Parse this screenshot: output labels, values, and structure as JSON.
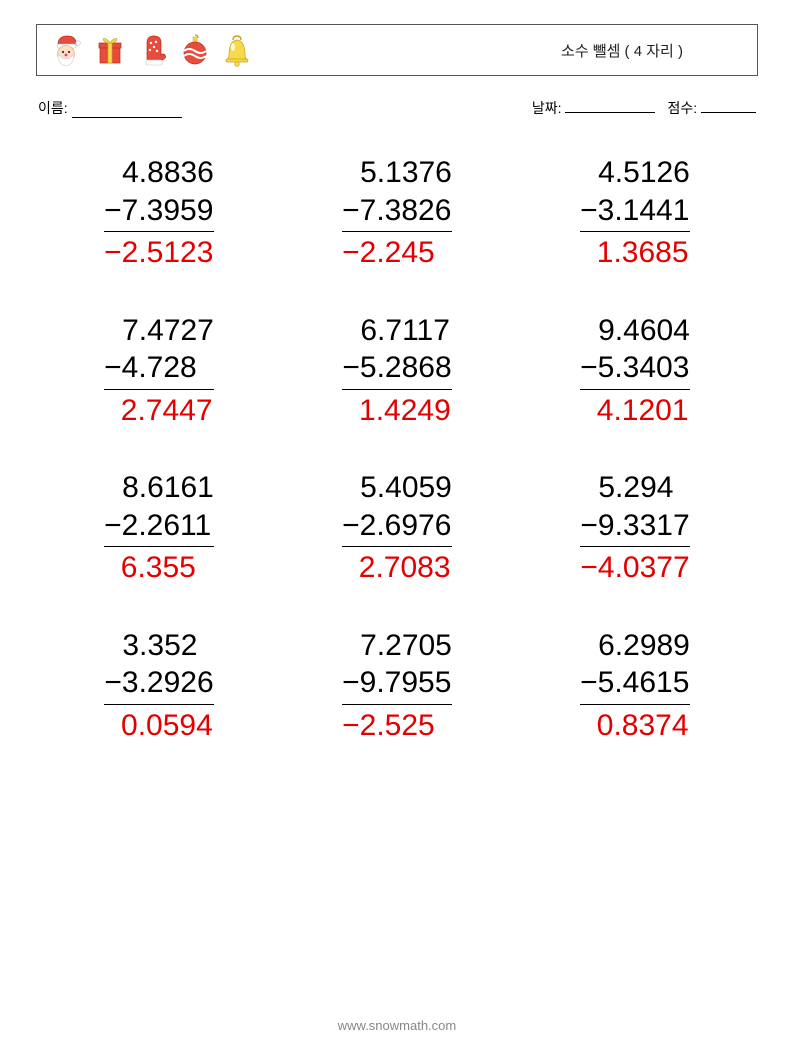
{
  "header": {
    "title": "소수 뺄셈 ( 4 자리 )"
  },
  "meta": {
    "name_label": "이름:",
    "date_label": "날짜:",
    "score_label": "점수:"
  },
  "style": {
    "answer_color": "#e40000",
    "text_color": "#000000",
    "font_size_problem": 30,
    "cols": 3,
    "rows": 4
  },
  "problems": [
    {
      "minuend": "4.8836",
      "subtrahend_display": "−7.3959",
      "answer_display": "−2.5123"
    },
    {
      "minuend": "5.1376",
      "subtrahend_display": "−7.3826",
      "answer_display": "−2.245"
    },
    {
      "minuend": "4.5126",
      "subtrahend_display": "−3.1441",
      "answer_display": "  1.3685"
    },
    {
      "minuend": "7.4727",
      "subtrahend_display": "−4.728",
      "answer_display": "  2.7447"
    },
    {
      "minuend": "6.7117",
      "subtrahend_display": "−5.2868",
      "answer_display": "  1.4249"
    },
    {
      "minuend": "9.4604",
      "subtrahend_display": "−5.3403",
      "answer_display": "  4.1201"
    },
    {
      "minuend": "8.6161",
      "subtrahend_display": "−2.2611",
      "answer_display": "  6.355"
    },
    {
      "minuend": "5.4059",
      "subtrahend_display": "−2.6976",
      "answer_display": "  2.7083"
    },
    {
      "minuend": "5.294",
      "subtrahend_display": "−9.3317",
      "answer_display": "−4.0377"
    },
    {
      "minuend": "3.352",
      "subtrahend_display": "−3.2926",
      "answer_display": "  0.0594"
    },
    {
      "minuend": "7.2705",
      "subtrahend_display": "−9.7955",
      "answer_display": "−2.525"
    },
    {
      "minuend": "6.2989",
      "subtrahend_display": "−5.4615",
      "answer_display": "  0.8374"
    }
  ],
  "footer": {
    "url": "www.snowmath.com"
  },
  "icons": [
    "santa-icon",
    "gift-box-icon",
    "mitten-icon",
    "ornament-icon",
    "bell-icon"
  ]
}
